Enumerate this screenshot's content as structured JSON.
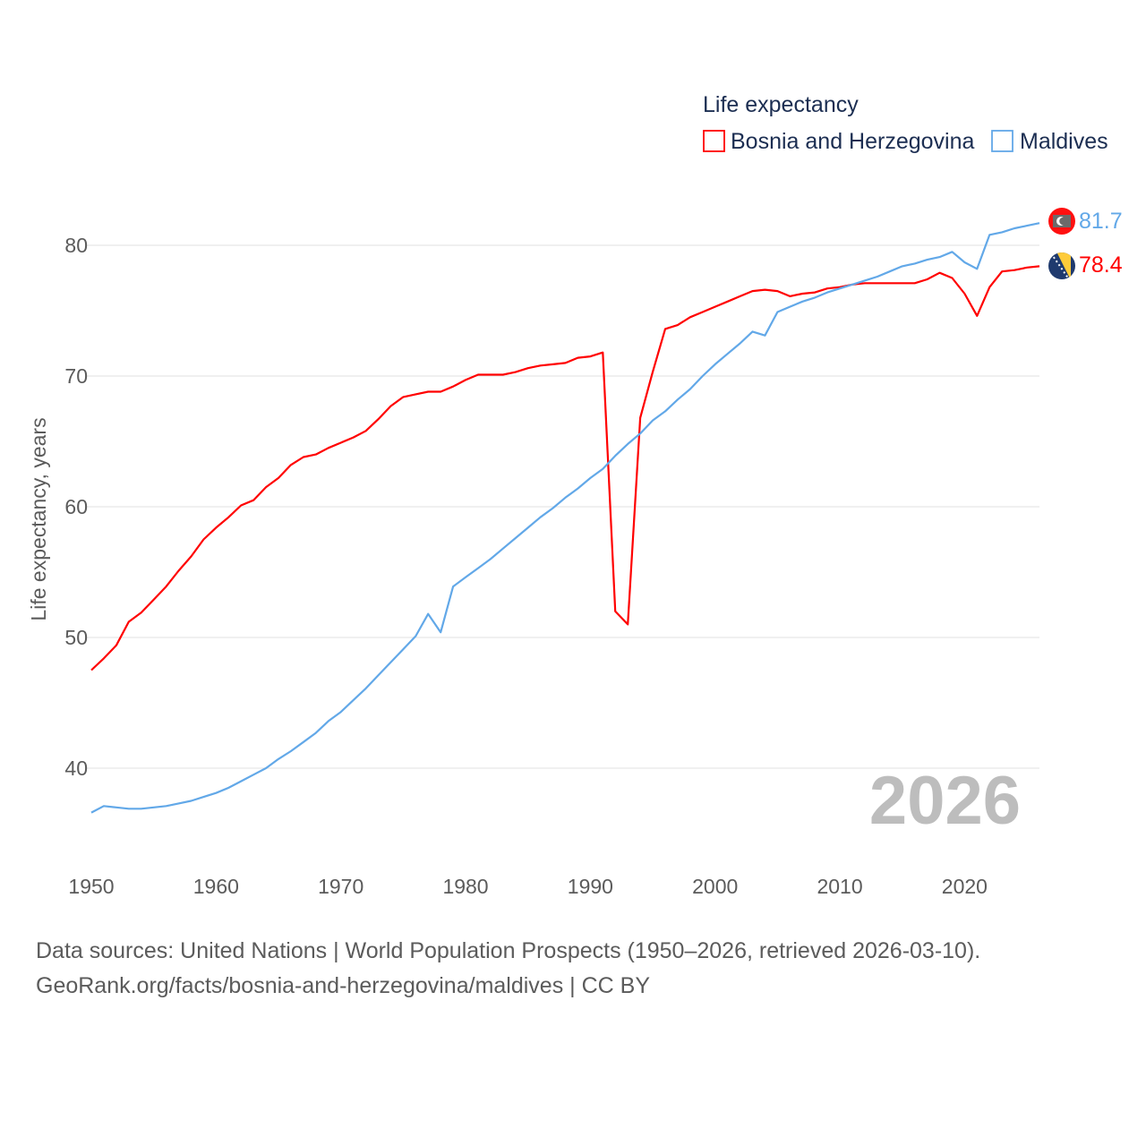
{
  "chart_data": {
    "type": "line",
    "title": "",
    "legend_title": "Life expectancy",
    "legend_position": "top-right",
    "xlabel": "",
    "ylabel": "Life expectancy, years",
    "xlim": [
      1950,
      2026
    ],
    "ylim": [
      35,
      85
    ],
    "x_ticks": [
      "1950",
      "1960",
      "1970",
      "1980",
      "1990",
      "2000",
      "2010",
      "2020"
    ],
    "y_ticks": [
      "40",
      "50",
      "60",
      "70",
      "80"
    ],
    "grid": true,
    "year_label": "2026",
    "x_start": 1950,
    "series": [
      {
        "name": "Bosnia and Herzegovina",
        "color": "#ff0000",
        "end_label": "78.4",
        "flag": "bosnia-flag",
        "values": [
          47.5,
          48.4,
          49.4,
          51.2,
          51.9,
          52.9,
          53.9,
          55.1,
          56.2,
          57.5,
          58.4,
          59.2,
          60.1,
          60.5,
          61.5,
          62.2,
          63.2,
          63.8,
          64.0,
          64.5,
          64.9,
          65.3,
          65.8,
          66.7,
          67.7,
          68.4,
          68.6,
          68.8,
          68.8,
          69.2,
          69.7,
          70.1,
          70.1,
          70.1,
          70.3,
          70.6,
          70.8,
          70.9,
          71.0,
          71.4,
          71.5,
          71.8,
          52.0,
          51.0,
          66.8,
          70.3,
          73.6,
          73.9,
          74.5,
          74.9,
          75.3,
          75.7,
          76.1,
          76.5,
          76.6,
          76.5,
          76.1,
          76.3,
          76.4,
          76.7,
          76.8,
          77.0,
          77.1,
          77.1,
          77.1,
          77.1,
          77.1,
          77.4,
          77.9,
          77.5,
          76.3,
          74.6,
          76.8,
          78.0,
          78.1,
          78.3,
          78.4
        ]
      },
      {
        "name": "Maldives",
        "color": "#62a8e8",
        "end_label": "81.7",
        "flag": "maldives-flag",
        "values": [
          36.6,
          37.1,
          37.0,
          36.9,
          36.9,
          37.0,
          37.1,
          37.3,
          37.5,
          37.8,
          38.1,
          38.5,
          39.0,
          39.5,
          40.0,
          40.7,
          41.3,
          42.0,
          42.7,
          43.6,
          44.3,
          45.2,
          46.1,
          47.1,
          48.1,
          49.1,
          50.1,
          51.8,
          50.4,
          53.9,
          54.6,
          55.3,
          56.0,
          56.8,
          57.6,
          58.4,
          59.2,
          59.9,
          60.7,
          61.4,
          62.2,
          62.9,
          63.9,
          64.8,
          65.6,
          66.6,
          67.3,
          68.2,
          69.0,
          70.0,
          70.9,
          71.7,
          72.5,
          73.4,
          73.1,
          74.9,
          75.3,
          75.7,
          76.0,
          76.4,
          76.7,
          77.0,
          77.3,
          77.6,
          78.0,
          78.4,
          78.6,
          78.9,
          79.1,
          79.5,
          78.7,
          78.2,
          80.8,
          81.0,
          81.3,
          81.5,
          81.7
        ]
      }
    ]
  },
  "footer": {
    "line1": "Data sources: United Nations | World Population Prospects (1950–2026, retrieved 2026-03-10).",
    "line2": "GeoRank.org/facts/bosnia-and-herzegovina/maldives | CC BY"
  }
}
